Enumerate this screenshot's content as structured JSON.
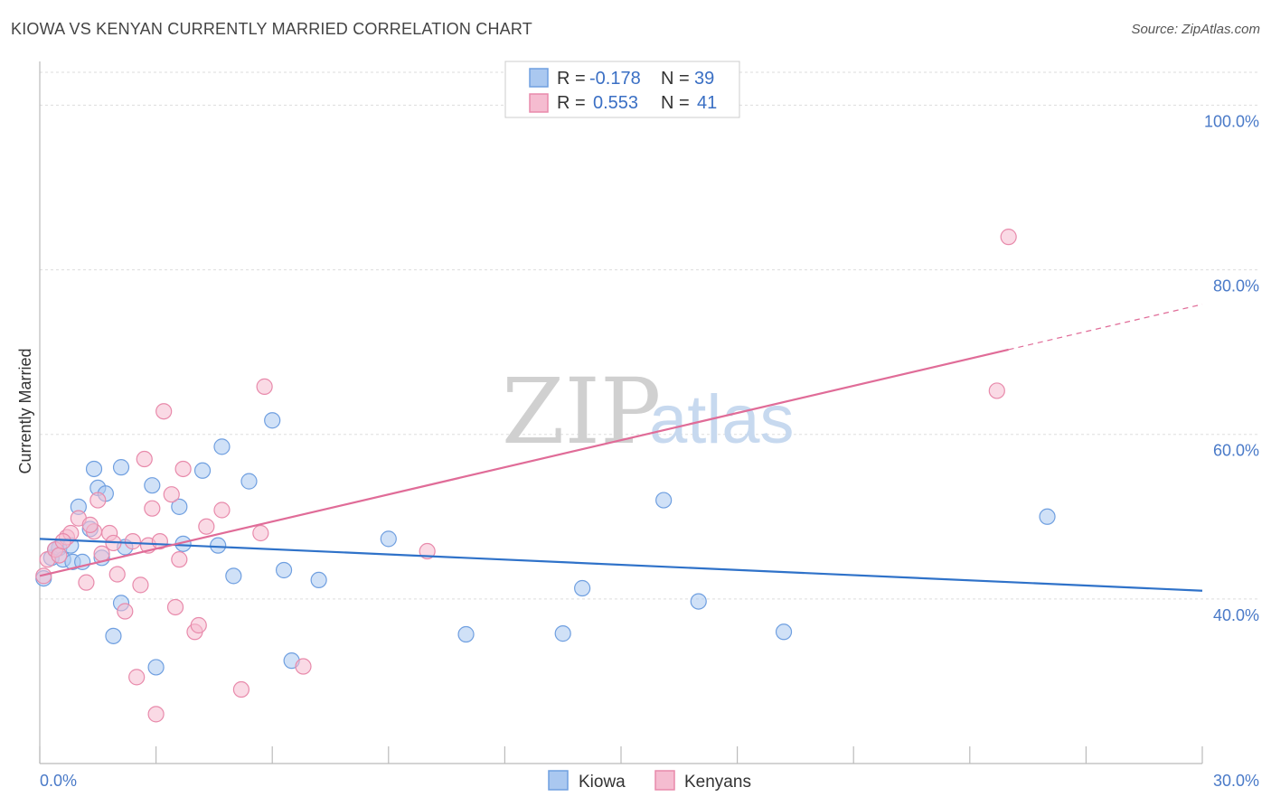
{
  "title": "KIOWA VS KENYAN CURRENTLY MARRIED CORRELATION CHART",
  "source": "Source: ZipAtlas.com",
  "watermark": {
    "zip": "ZIP",
    "atlas": "atlas"
  },
  "legend": {
    "rows": [
      {
        "r_label": "R =",
        "r_value": "-0.178",
        "n_label": "N =",
        "n_value": "39"
      },
      {
        "r_label": "R =",
        "r_value": "0.553",
        "n_label": "N =",
        "n_value": "41"
      }
    ]
  },
  "bottom_legend": [
    "Kiowa",
    "Kenyans"
  ],
  "colors": {
    "kiowa_fill": "#aac8f0",
    "kiowa_stroke": "#6f9fe0",
    "kiowa_line": "#2f72c9",
    "kenyan_fill": "#f5bcd0",
    "kenyan_stroke": "#e88aab",
    "kenyan_line": "#e06c98"
  },
  "chart_data": {
    "type": "scatter",
    "title": "KIOWA VS KENYAN CURRENTLY MARRIED CORRELATION CHART",
    "xlabel": "",
    "ylabel": "Currently Married",
    "xlim": [
      0,
      30
    ],
    "ylim": [
      20,
      104
    ],
    "x_tick_labels": [
      {
        "value": 0,
        "label": "0.0%"
      },
      {
        "value": 30,
        "label": "30.0%"
      }
    ],
    "y_tick_labels": [
      {
        "value": 40,
        "label": "40.0%"
      },
      {
        "value": 60,
        "label": "60.0%"
      },
      {
        "value": 80,
        "label": "80.0%"
      },
      {
        "value": 100,
        "label": "100.0%"
      }
    ],
    "series": [
      {
        "name": "Kiowa",
        "points": [
          [
            0.1,
            42.5
          ],
          [
            0.3,
            45.0
          ],
          [
            0.5,
            46.2
          ],
          [
            0.6,
            44.8
          ],
          [
            0.8,
            46.5
          ],
          [
            0.85,
            44.5
          ],
          [
            1.0,
            51.2
          ],
          [
            1.1,
            44.5
          ],
          [
            1.3,
            48.5
          ],
          [
            1.4,
            55.8
          ],
          [
            1.5,
            53.5
          ],
          [
            1.6,
            45.0
          ],
          [
            1.7,
            52.8
          ],
          [
            2.1,
            56.0
          ],
          [
            2.2,
            46.3
          ],
          [
            2.1,
            39.5
          ],
          [
            2.9,
            53.8
          ],
          [
            3.6,
            51.2
          ],
          [
            3.7,
            46.7
          ],
          [
            4.2,
            55.6
          ],
          [
            4.6,
            46.5
          ],
          [
            4.7,
            58.5
          ],
          [
            5.0,
            42.8
          ],
          [
            5.4,
            54.3
          ],
          [
            6.0,
            61.7
          ],
          [
            6.5,
            32.5
          ],
          [
            6.3,
            43.5
          ],
          [
            7.2,
            42.3
          ],
          [
            9.0,
            47.3
          ],
          [
            11.0,
            35.7
          ],
          [
            13.5,
            35.8
          ],
          [
            14.0,
            41.3
          ],
          [
            16.1,
            52.0
          ],
          [
            17.0,
            39.7
          ],
          [
            19.2,
            36.0
          ],
          [
            26.0,
            50.0
          ],
          [
            3.0,
            31.7
          ],
          [
            1.9,
            35.5
          ],
          [
            0.4,
            46.0
          ]
        ],
        "trend": {
          "x": [
            0,
            30
          ],
          "y": [
            47.3,
            41.0
          ]
        }
      },
      {
        "name": "Kenyans",
        "points": [
          [
            0.1,
            42.8
          ],
          [
            0.2,
            44.8
          ],
          [
            0.4,
            46.0
          ],
          [
            0.5,
            45.3
          ],
          [
            0.7,
            47.5
          ],
          [
            0.8,
            48.0
          ],
          [
            1.0,
            49.8
          ],
          [
            1.2,
            42.0
          ],
          [
            1.4,
            48.2
          ],
          [
            1.5,
            52.0
          ],
          [
            1.6,
            45.5
          ],
          [
            1.8,
            48.0
          ],
          [
            1.9,
            46.8
          ],
          [
            2.0,
            43.0
          ],
          [
            2.2,
            38.5
          ],
          [
            2.4,
            47.0
          ],
          [
            2.5,
            30.5
          ],
          [
            2.6,
            41.7
          ],
          [
            2.7,
            57.0
          ],
          [
            2.8,
            46.5
          ],
          [
            2.9,
            51.0
          ],
          [
            3.0,
            26.0
          ],
          [
            3.1,
            47.0
          ],
          [
            3.2,
            62.8
          ],
          [
            3.4,
            52.7
          ],
          [
            3.5,
            39.0
          ],
          [
            3.6,
            44.8
          ],
          [
            3.7,
            55.8
          ],
          [
            4.0,
            36.0
          ],
          [
            4.1,
            36.8
          ],
          [
            4.3,
            48.8
          ],
          [
            4.7,
            50.8
          ],
          [
            5.2,
            29.0
          ],
          [
            5.7,
            48.0
          ],
          [
            5.8,
            65.8
          ],
          [
            6.8,
            31.8
          ],
          [
            10.0,
            45.8
          ],
          [
            24.7,
            65.3
          ],
          [
            25.0,
            84.0
          ],
          [
            1.3,
            49.0
          ],
          [
            0.6,
            47.0
          ]
        ],
        "trend": {
          "x": [
            0,
            25
          ],
          "y": [
            42.8,
            70.3
          ]
        },
        "trend_extension": {
          "x": [
            25,
            30
          ],
          "y": [
            70.3,
            75.8
          ]
        }
      }
    ],
    "grid": true,
    "legend_position": "top-center"
  }
}
